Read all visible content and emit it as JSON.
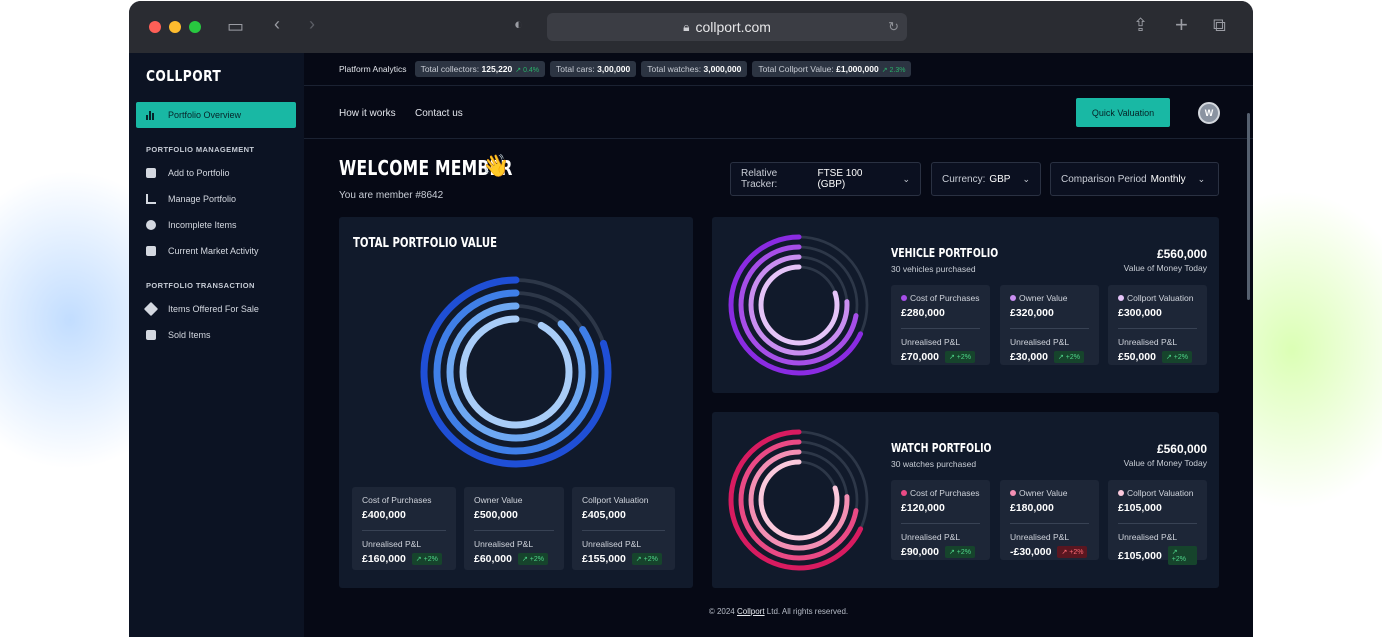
{
  "browser": {
    "url": "collport.com"
  },
  "sidebar": {
    "logo": "COLLPORT",
    "active_item": "Portfolio Overview",
    "sections": [
      {
        "title": "PORTFOLIO MANAGEMENT",
        "items": [
          "Add to Portfolio",
          "Manage Portfolio",
          "Incomplete Items",
          "Current Market Activity"
        ]
      },
      {
        "title": "PORTFOLIO TRANSACTION",
        "items": [
          "Items Offered For Sale",
          "Sold Items"
        ]
      }
    ]
  },
  "stats": {
    "label": "Platform Analytics",
    "pills": [
      {
        "label": "Total collectors:",
        "value": "125,220",
        "change": "↗ 0.4%"
      },
      {
        "label": "Total cars:",
        "value": "3,00,000",
        "change": ""
      },
      {
        "label": "Total watches:",
        "value": "3,000,000",
        "change": ""
      },
      {
        "label": "Total Collport Value:",
        "value": "£1,000,000",
        "change": "↗ 2.3%"
      }
    ]
  },
  "topnav": {
    "links": [
      "How it works",
      "Contact us"
    ],
    "cta": "Quick Valuation",
    "avatar_initial": "W"
  },
  "welcome": {
    "title": "WELCOME MEMBER",
    "emoji": "👋",
    "member_text": "You are member #8642"
  },
  "filters": [
    {
      "label": "Relative Tracker:",
      "value": "FTSE 100 (GBP)"
    },
    {
      "label": "Currency:",
      "value": "GBP"
    },
    {
      "label": "Comparison Period",
      "value": "Monthly"
    }
  ],
  "total_portfolio": {
    "title": "TOTAL PORTFOLIO VALUE",
    "rings_fill": [
      0.8,
      0.84,
      0.88,
      0.92
    ],
    "colors": [
      "#1f4fd6",
      "#3f7fe8",
      "#6ea8f2",
      "#a9cdf8"
    ],
    "metrics": [
      {
        "label": "Cost of Purchases",
        "value": "£400,000",
        "pl_label": "Unrealised P&L",
        "pl_value": "£160,000",
        "change": "↗ +2%",
        "positive": true
      },
      {
        "label": "Owner Value",
        "value": "£500,000",
        "pl_label": "Unrealised P&L",
        "pl_value": "£60,000",
        "change": "↗ +2%",
        "positive": true
      },
      {
        "label": "Collport Valuation",
        "value": "£405,000",
        "pl_label": "Unrealised P&L",
        "pl_value": "£155,000",
        "change": "↗ +2%",
        "positive": true
      }
    ]
  },
  "vehicle_portfolio": {
    "title": "VEHICLE PORTFOLIO",
    "subtitle": "30 vehicles purchased",
    "amount": "£560,000",
    "amount_label": "Value of Money Today",
    "rings_fill": [
      0.68,
      0.72,
      0.76,
      0.8
    ],
    "colors": [
      "#8a2be2",
      "#a64ee8",
      "#c98ef0",
      "#e5c4f8"
    ],
    "metrics": [
      {
        "label": "Cost of Purchases",
        "dot": "#a64ee8",
        "value": "£280,000",
        "pl_label": "Unrealised P&L",
        "pl_value": "£70,000",
        "change": "↗ +2%",
        "positive": true
      },
      {
        "label": "Owner Value",
        "dot": "#c98ef0",
        "value": "£320,000",
        "pl_label": "Unrealised P&L",
        "pl_value": "£30,000",
        "change": "↗ +2%",
        "positive": true
      },
      {
        "label": "Collport Valuation",
        "dot": "#e5c4f8",
        "value": "£300,000",
        "pl_label": "Unrealised P&L",
        "pl_value": "£50,000",
        "change": "↗ +2%",
        "positive": true
      }
    ]
  },
  "watch_portfolio": {
    "title": "WATCH PORTFOLIO",
    "subtitle": "30 watches purchased",
    "amount": "£560,000",
    "amount_label": "Value of Money Today",
    "rings_fill": [
      0.68,
      0.72,
      0.76,
      0.8
    ],
    "colors": [
      "#d81b60",
      "#ea4a85",
      "#f38fb3",
      "#fbc9dc"
    ],
    "metrics": [
      {
        "label": "Cost of Purchases",
        "dot": "#ea4a85",
        "value": "£120,000",
        "pl_label": "Unrealised P&L",
        "pl_value": "£90,000",
        "change": "↗ +2%",
        "positive": true
      },
      {
        "label": "Owner Value",
        "dot": "#f38fb3",
        "value": "£180,000",
        "pl_label": "Unrealised P&L",
        "pl_value": "-£30,000",
        "change": "↗ +2%",
        "positive": false
      },
      {
        "label": "Collport Valuation",
        "dot": "#fbc9dc",
        "value": "£105,000",
        "pl_label": "Unrealised P&L",
        "pl_value": "£105,000",
        "change": "↗ +2%",
        "positive": true
      }
    ]
  },
  "footer": {
    "prefix": "© 2024 ",
    "brand": "Collport",
    "suffix": " Ltd. All rights reserved."
  }
}
